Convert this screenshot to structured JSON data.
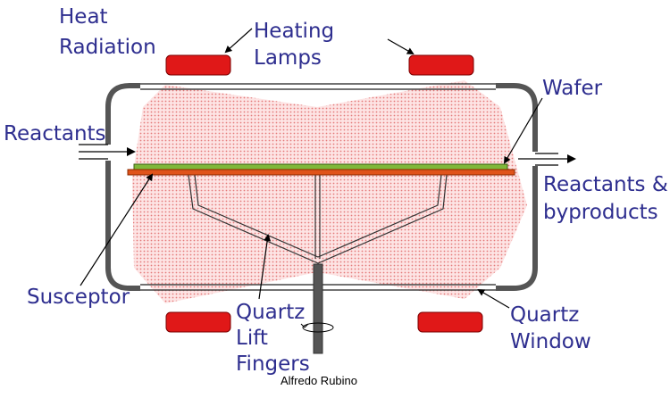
{
  "labels": {
    "heat_radiation": [
      "Heat",
      "Radiation"
    ],
    "heating_lamps": [
      "Heating",
      "Lamps"
    ],
    "reactants_in": "Reactants",
    "wafer": "Wafer",
    "reactants_out": [
      "Reactants &",
      "byproducts"
    ],
    "susceptor": "Susceptor",
    "quartz_lift_fingers": [
      "Quartz",
      "Lift",
      "Fingers"
    ],
    "quartz_window": [
      "Quartz",
      "Window"
    ]
  },
  "credit": "Alfredo Rubino",
  "colors": {
    "label": "#2e2e8f",
    "lamp": "#e01818",
    "wafer": "#7fb83a",
    "susceptor": "#e0531a",
    "radiation": "#f0a0a0",
    "chamber": "#555555"
  }
}
